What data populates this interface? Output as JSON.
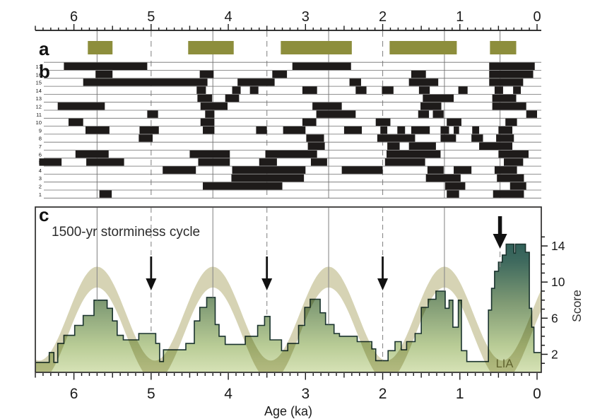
{
  "title": "1500-yr storminess cycle",
  "labels": {
    "panel_a": "a",
    "panel_b": "b",
    "panel_c": "c",
    "lia": "LIA",
    "score_axis": "Score",
    "age_axis": "Age (ka)"
  },
  "colors": {
    "storm_period_bar": "#8d8e3c",
    "record_bar": "#1e1b1a",
    "cycle_band": "#ccc8a1",
    "histogram_gradient": [
      "#134a4e",
      "#3f6a5e",
      "#7f9a74",
      "#b9cc96",
      "#d6e2b6"
    ],
    "histogram_outline": "#1a332e",
    "frame": "#2e2d2c",
    "gridline": "#8a8a8a",
    "arrow": "#111111",
    "lia_text": "#60632e"
  },
  "chart_data": {
    "type": "composite",
    "title": "1500-yr storminess cycle",
    "age_axis": {
      "label": "Age (ka)",
      "tick_labels": [
        6,
        5,
        4,
        3,
        2,
        1,
        0
      ],
      "range_ka": [
        6.5,
        -0.05
      ],
      "minor_tick_ka": 0.1,
      "half_tick_ka": 0.5
    },
    "score_axis": {
      "label": "Score",
      "tick_labels": [
        2,
        6,
        10,
        14
      ],
      "minor_tick": 1,
      "range": [
        0,
        15
      ],
      "position": "right"
    },
    "cycle_markers": {
      "solid_maxima_ka": [
        5.7,
        4.2,
        2.7,
        1.2
      ],
      "dashed_minima_ka": [
        5.0,
        3.5,
        2.0
      ],
      "lia_marker_ka": 0.48,
      "arrow_minima_ka": [
        5.0,
        3.5,
        2.0
      ]
    },
    "panel_a_storm_periods_ka": [
      [
        5.82,
        5.5
      ],
      [
        4.52,
        3.93
      ],
      [
        3.32,
        2.4
      ],
      [
        1.91,
        1.04
      ],
      [
        0.61,
        0.27
      ]
    ],
    "panel_b_records": [
      {
        "id": 17,
        "intervals_ka": [
          [
            6.13,
            5.05
          ],
          [
            3.17,
            2.41
          ],
          [
            0.62,
            0.03
          ]
        ]
      },
      {
        "id": 16,
        "intervals_ka": [
          [
            5.72,
            5.5
          ],
          [
            4.37,
            4.19
          ],
          [
            3.43,
            3.24
          ],
          [
            1.63,
            1.44
          ],
          [
            0.62,
            0.05
          ]
        ]
      },
      {
        "id": 15,
        "intervals_ka": [
          [
            5.88,
            4.27
          ],
          [
            3.88,
            3.4
          ],
          [
            2.43,
            2.28
          ],
          [
            1.66,
            1.28
          ],
          [
            0.62,
            0.18
          ]
        ]
      },
      {
        "id": 14,
        "intervals_ka": [
          [
            4.41,
            4.29
          ],
          [
            3.95,
            3.84
          ],
          [
            3.72,
            3.61
          ],
          [
            3.04,
            2.85
          ],
          [
            2.35,
            2.21
          ],
          [
            2.01,
            1.86
          ],
          [
            1.53,
            1.39
          ],
          [
            1.02,
            0.9
          ],
          [
            0.55,
            0.44
          ],
          [
            0.31,
            0.21
          ]
        ]
      },
      {
        "id": 13,
        "intervals_ka": [
          [
            4.4,
            4.21
          ],
          [
            4.04,
            3.86
          ],
          [
            1.48,
            1.08
          ],
          [
            0.58,
            0.27
          ]
        ]
      },
      {
        "id": 12,
        "intervals_ka": [
          [
            6.21,
            5.6
          ],
          [
            4.36,
            4.01
          ],
          [
            2.91,
            2.53
          ],
          [
            1.51,
            1.24
          ],
          [
            0.58,
            0.14
          ]
        ]
      },
      {
        "id": 11,
        "intervals_ka": [
          [
            5.05,
            4.91
          ],
          [
            4.3,
            4.18
          ],
          [
            2.86,
            2.35
          ],
          [
            1.54,
            1.4
          ],
          [
            1.35,
            1.21
          ],
          [
            0.14,
            0.0
          ]
        ]
      },
      {
        "id": 10,
        "intervals_ka": [
          [
            6.07,
            5.88
          ],
          [
            4.36,
            4.18
          ],
          [
            3.04,
            2.86
          ],
          [
            2.09,
            1.9
          ],
          [
            1.17,
            0.98
          ],
          [
            0.41,
            0.26
          ]
        ]
      },
      {
        "id": 9,
        "intervals_ka": [
          [
            5.85,
            5.54
          ],
          [
            5.15,
            4.9
          ],
          [
            4.33,
            4.18
          ],
          [
            3.64,
            3.5
          ],
          [
            3.29,
            3.0
          ],
          [
            2.5,
            2.27
          ],
          [
            2.03,
            1.94
          ],
          [
            1.81,
            1.71
          ],
          [
            1.63,
            1.39
          ],
          [
            1.25,
            1.14
          ],
          [
            1.08,
            1.01
          ],
          [
            0.84,
            0.75
          ],
          [
            0.5,
            0.32
          ]
        ]
      },
      {
        "id": 8,
        "intervals_ka": [
          [
            5.16,
            4.98
          ],
          [
            2.99,
            2.76
          ],
          [
            2.07,
            1.58
          ],
          [
            1.25,
            1.05
          ],
          [
            0.85,
            0.7
          ],
          [
            0.53,
            0.3
          ]
        ]
      },
      {
        "id": 7,
        "intervals_ka": [
          [
            2.97,
            2.75
          ],
          [
            1.94,
            1.78
          ],
          [
            1.66,
            1.31
          ],
          [
            0.75,
            0.32
          ]
        ]
      },
      {
        "id": 6,
        "intervals_ka": [
          [
            5.98,
            5.55
          ],
          [
            4.5,
            3.98
          ],
          [
            3.52,
            2.85
          ],
          [
            1.95,
            1.25
          ],
          [
            0.5,
            0.11
          ]
        ]
      },
      {
        "id": 5,
        "intervals_ka": [
          [
            6.45,
            6.16
          ],
          [
            5.84,
            5.35
          ],
          [
            4.39,
            3.98
          ],
          [
            3.6,
            3.37
          ],
          [
            2.93,
            2.72
          ],
          [
            1.97,
            1.45
          ],
          [
            0.43,
            0.18
          ]
        ]
      },
      {
        "id": 4,
        "intervals_ka": [
          [
            4.85,
            4.42
          ],
          [
            3.95,
            3.0
          ],
          [
            2.53,
            2.0
          ],
          [
            1.42,
            1.21
          ],
          [
            1.08,
            0.85
          ],
          [
            0.55,
            0.26
          ]
        ]
      },
      {
        "id": 3,
        "intervals_ka": [
          [
            3.96,
            3.02
          ],
          [
            1.44,
            0.99
          ],
          [
            0.52,
            0.17
          ]
        ]
      },
      {
        "id": 2,
        "intervals_ka": [
          [
            4.33,
            3.3
          ],
          [
            1.19,
            0.93
          ],
          [
            0.35,
            0.14
          ]
        ]
      },
      {
        "id": 1,
        "intervals_ka": [
          [
            5.67,
            5.51
          ],
          [
            1.17,
            1.01
          ],
          [
            0.57,
            0.17
          ]
        ]
      }
    ],
    "panel_c_storminess": {
      "type": "step-area",
      "series_label": "storminess score",
      "lia_label": "LIA",
      "steps_ka_score": [
        [
          6.5,
          6.32,
          1.1
        ],
        [
          6.32,
          6.26,
          2.2
        ],
        [
          6.26,
          6.21,
          1.1
        ],
        [
          6.21,
          6.13,
          3.2
        ],
        [
          6.13,
          5.99,
          4.1
        ],
        [
          5.99,
          5.88,
          5.2
        ],
        [
          5.88,
          5.74,
          6.3
        ],
        [
          5.74,
          5.57,
          8.0
        ],
        [
          5.57,
          5.5,
          7.1
        ],
        [
          5.5,
          5.44,
          5.7
        ],
        [
          5.44,
          5.36,
          4.1
        ],
        [
          5.36,
          5.16,
          3.6
        ],
        [
          5.16,
          4.94,
          4.3
        ],
        [
          4.94,
          4.89,
          3.2
        ],
        [
          4.89,
          4.84,
          1.2
        ],
        [
          4.84,
          4.55,
          2.5
        ],
        [
          4.55,
          4.44,
          3.2
        ],
        [
          4.44,
          4.37,
          5.7
        ],
        [
          4.37,
          4.28,
          7.2
        ],
        [
          4.28,
          4.17,
          8.3
        ],
        [
          4.17,
          4.12,
          5.3
        ],
        [
          4.12,
          4.04,
          4.0
        ],
        [
          4.04,
          3.78,
          3.1
        ],
        [
          3.78,
          3.62,
          4.0
        ],
        [
          3.62,
          3.53,
          5.2
        ],
        [
          3.53,
          3.46,
          6.2
        ],
        [
          3.46,
          3.31,
          3.6
        ],
        [
          3.31,
          3.23,
          2.4
        ],
        [
          3.23,
          3.09,
          3.2
        ],
        [
          3.09,
          3.01,
          5.2
        ],
        [
          3.01,
          2.94,
          7.2
        ],
        [
          2.94,
          2.81,
          8.1
        ],
        [
          2.81,
          2.74,
          6.6
        ],
        [
          2.74,
          2.63,
          5.3
        ],
        [
          2.63,
          2.56,
          4.3
        ],
        [
          2.56,
          2.33,
          4.0
        ],
        [
          2.33,
          2.14,
          3.4
        ],
        [
          2.14,
          2.09,
          2.6
        ],
        [
          2.09,
          1.93,
          1.3
        ],
        [
          1.93,
          1.84,
          2.4
        ],
        [
          1.84,
          1.76,
          3.4
        ],
        [
          1.76,
          1.69,
          2.5
        ],
        [
          1.69,
          1.58,
          3.4
        ],
        [
          1.58,
          1.5,
          4.3
        ],
        [
          1.5,
          1.41,
          7.2
        ],
        [
          1.41,
          1.31,
          8.1
        ],
        [
          1.31,
          1.19,
          9.0
        ],
        [
          1.19,
          1.14,
          7.1
        ],
        [
          1.14,
          1.09,
          8.0
        ],
        [
          1.09,
          1.02,
          5.0
        ],
        [
          1.02,
          0.98,
          8.0
        ],
        [
          0.98,
          0.91,
          2.4
        ],
        [
          0.91,
          0.63,
          1.2
        ],
        [
          0.63,
          0.59,
          6.9
        ],
        [
          0.59,
          0.55,
          9.3
        ],
        [
          0.55,
          0.5,
          11.2
        ],
        [
          0.5,
          0.45,
          12.2
        ],
        [
          0.45,
          0.4,
          13.0
        ],
        [
          0.4,
          0.3,
          14.2
        ],
        [
          0.3,
          0.28,
          13.2
        ],
        [
          0.28,
          0.15,
          14.2
        ],
        [
          0.15,
          0.1,
          13.3
        ],
        [
          0.1,
          0.07,
          7.1
        ],
        [
          0.07,
          0.04,
          5.0
        ],
        [
          0.04,
          -0.06,
          2.2
        ]
      ],
      "cycle_band": {
        "period_ka": 1.5,
        "crest_ka": [
          5.7,
          4.2,
          2.7,
          1.2
        ],
        "trough_ka": [
          6.45,
          4.95,
          3.45,
          1.95,
          0.45
        ],
        "mean_score": 5.35,
        "amplitude_score": 5.2,
        "half_width_score": 1.15
      }
    }
  }
}
